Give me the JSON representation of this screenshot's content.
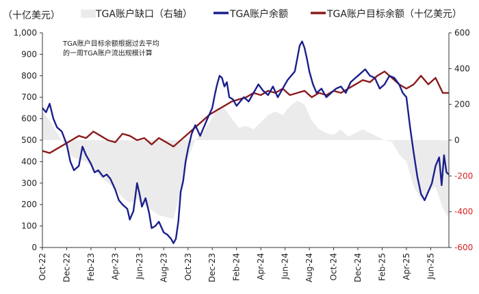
{
  "chart_data": {
    "type": "line",
    "title": "",
    "left_axis_label": "（十亿美元）",
    "annotation": [
      "TGA账户目标余额根据过去平均",
      "的一周TGA账户流出规模计算"
    ],
    "legend": [
      {
        "name": "TGA账户缺口（右轴）",
        "key": "gap"
      },
      {
        "name": "TGA账户余额",
        "key": "balance"
      },
      {
        "name": "TGA账户目标余额（十亿美元）",
        "key": "target"
      }
    ],
    "colors": {
      "gap": "#ebebeb",
      "balance": "#1a1f8c",
      "target": "#8b1a1a",
      "negative_tick": "#d61f1f"
    },
    "x": [
      "Oct-22",
      "Dec-22",
      "Feb-23",
      "Apr-23",
      "Jun-23",
      "Aug-23",
      "Oct-23",
      "Dec-23",
      "Feb-24",
      "Apr-24",
      "Jun-24",
      "Aug-24",
      "Oct-24",
      "Dec-24",
      "Feb-25",
      "Apr-25",
      "Jun-25"
    ],
    "x_ticks": [
      "Oct-22",
      "Dec-22",
      "Feb-23",
      "Apr-23",
      "Jun-23",
      "Aug-23",
      "Oct-23",
      "Dec-23",
      "Feb-24",
      "Apr-24",
      "Jun-24",
      "Aug-24",
      "Oct-24",
      "Dec-24",
      "Feb-25",
      "Apr-25",
      "Jun-25"
    ],
    "x_range_months": [
      0,
      33.5
    ],
    "ylim_left": [
      0,
      1000
    ],
    "ylim_right": [
      -600,
      600
    ],
    "y_ticks_left": [
      "0",
      "100",
      "200",
      "300",
      "400",
      "500",
      "600",
      "700",
      "800",
      "900",
      "1,000"
    ],
    "y_ticks_right": [
      "-600",
      "-400",
      "-200",
      "0",
      "200",
      "400",
      "600"
    ],
    "series": [
      {
        "name": "TGA账户余额",
        "axis": "left",
        "points": [
          [
            0,
            650
          ],
          [
            0.3,
            630
          ],
          [
            0.6,
            670
          ],
          [
            0.9,
            600
          ],
          [
            1.2,
            560
          ],
          [
            1.6,
            540
          ],
          [
            2,
            480
          ],
          [
            2.3,
            400
          ],
          [
            2.6,
            360
          ],
          [
            3,
            380
          ],
          [
            3.3,
            470
          ],
          [
            3.6,
            430
          ],
          [
            4,
            390
          ],
          [
            4.3,
            350
          ],
          [
            4.6,
            360
          ],
          [
            5,
            330
          ],
          [
            5.3,
            340
          ],
          [
            5.6,
            320
          ],
          [
            6,
            270
          ],
          [
            6.3,
            220
          ],
          [
            6.6,
            200
          ],
          [
            7,
            180
          ],
          [
            7.2,
            130
          ],
          [
            7.5,
            170
          ],
          [
            7.8,
            300
          ],
          [
            8,
            250
          ],
          [
            8.2,
            190
          ],
          [
            8.5,
            230
          ],
          [
            8.8,
            160
          ],
          [
            9,
            90
          ],
          [
            9.3,
            100
          ],
          [
            9.6,
            120
          ],
          [
            10,
            70
          ],
          [
            10.3,
            60
          ],
          [
            10.6,
            40
          ],
          [
            10.8,
            20
          ],
          [
            11,
            40
          ],
          [
            11.2,
            120
          ],
          [
            11.4,
            260
          ],
          [
            11.6,
            310
          ],
          [
            11.8,
            400
          ],
          [
            12,
            460
          ],
          [
            12.3,
            530
          ],
          [
            12.6,
            570
          ],
          [
            13,
            520
          ],
          [
            13.3,
            560
          ],
          [
            13.6,
            600
          ],
          [
            14,
            650
          ],
          [
            14.2,
            710
          ],
          [
            14.4,
            760
          ],
          [
            14.6,
            800
          ],
          [
            14.8,
            790
          ],
          [
            15,
            750
          ],
          [
            15.2,
            770
          ],
          [
            15.4,
            700
          ],
          [
            15.7,
            690
          ],
          [
            16,
            660
          ],
          [
            16.3,
            680
          ],
          [
            16.6,
            700
          ],
          [
            17,
            680
          ],
          [
            17.4,
            720
          ],
          [
            17.8,
            760
          ],
          [
            18.2,
            730
          ],
          [
            18.6,
            710
          ],
          [
            19,
            750
          ],
          [
            19.4,
            700
          ],
          [
            19.8,
            740
          ],
          [
            20.2,
            780
          ],
          [
            20.5,
            800
          ],
          [
            20.8,
            820
          ],
          [
            21,
            880
          ],
          [
            21.2,
            940
          ],
          [
            21.4,
            960
          ],
          [
            21.6,
            930
          ],
          [
            21.8,
            880
          ],
          [
            22,
            820
          ],
          [
            22.3,
            760
          ],
          [
            22.6,
            720
          ],
          [
            23,
            740
          ],
          [
            23.4,
            700
          ],
          [
            23.8,
            720
          ],
          [
            24.2,
            740
          ],
          [
            24.6,
            750
          ],
          [
            25,
            720
          ],
          [
            25.4,
            770
          ],
          [
            25.8,
            790
          ],
          [
            26.2,
            810
          ],
          [
            26.6,
            830
          ],
          [
            27,
            800
          ],
          [
            27.4,
            790
          ],
          [
            27.8,
            740
          ],
          [
            28.2,
            760
          ],
          [
            28.6,
            800
          ],
          [
            29,
            790
          ],
          [
            29.4,
            760
          ],
          [
            29.7,
            720
          ],
          [
            30,
            700
          ],
          [
            30.3,
            560
          ],
          [
            30.6,
            440
          ],
          [
            30.9,
            330
          ],
          [
            31.2,
            250
          ],
          [
            31.5,
            220
          ],
          [
            31.8,
            260
          ],
          [
            32.1,
            300
          ],
          [
            32.4,
            380
          ],
          [
            32.7,
            420
          ],
          [
            32.9,
            290
          ],
          [
            33.1,
            430
          ],
          [
            33.3,
            350
          ],
          [
            33.5,
            340
          ]
        ]
      },
      {
        "name": "TGA账户目标余额（十亿美元）",
        "axis": "left",
        "points": [
          [
            0,
            450
          ],
          [
            0.6,
            440
          ],
          [
            1.2,
            460
          ],
          [
            1.8,
            480
          ],
          [
            2.4,
            500
          ],
          [
            3,
            520
          ],
          [
            3.6,
            510
          ],
          [
            4.2,
            540
          ],
          [
            4.8,
            520
          ],
          [
            5.4,
            500
          ],
          [
            6,
            490
          ],
          [
            6.6,
            530
          ],
          [
            7.2,
            520
          ],
          [
            7.8,
            500
          ],
          [
            8.4,
            510
          ],
          [
            9,
            480
          ],
          [
            9.6,
            510
          ],
          [
            10.2,
            490
          ],
          [
            10.8,
            470
          ],
          [
            11.4,
            500
          ],
          [
            12,
            530
          ],
          [
            12.6,
            560
          ],
          [
            13.2,
            590
          ],
          [
            13.8,
            620
          ],
          [
            14.4,
            640
          ],
          [
            15,
            660
          ],
          [
            15.6,
            680
          ],
          [
            16.2,
            690
          ],
          [
            16.8,
            700
          ],
          [
            17.4,
            720
          ],
          [
            18,
            710
          ],
          [
            18.6,
            730
          ],
          [
            19.2,
            720
          ],
          [
            19.8,
            740
          ],
          [
            20.4,
            710
          ],
          [
            21,
            720
          ],
          [
            21.6,
            730
          ],
          [
            22.2,
            700
          ],
          [
            22.8,
            720
          ],
          [
            23.4,
            710
          ],
          [
            24,
            730
          ],
          [
            24.6,
            720
          ],
          [
            25.2,
            740
          ],
          [
            25.8,
            760
          ],
          [
            26.4,
            780
          ],
          [
            27,
            770
          ],
          [
            27.6,
            800
          ],
          [
            28.2,
            820
          ],
          [
            28.8,
            790
          ],
          [
            29.4,
            760
          ],
          [
            30,
            740
          ],
          [
            30.6,
            760
          ],
          [
            31.2,
            800
          ],
          [
            31.8,
            760
          ],
          [
            32.4,
            790
          ],
          [
            33,
            720
          ],
          [
            33.5,
            720
          ]
        ]
      },
      {
        "name": "TGA账户缺口（右轴）",
        "axis": "right",
        "points": [
          [
            0,
            160
          ],
          [
            0.6,
            110
          ],
          [
            1.2,
            40
          ],
          [
            1.8,
            -20
          ],
          [
            2.4,
            -90
          ],
          [
            3,
            -110
          ],
          [
            3.6,
            -120
          ],
          [
            4.2,
            -160
          ],
          [
            4.8,
            -210
          ],
          [
            5.4,
            -240
          ],
          [
            6,
            -270
          ],
          [
            6.6,
            -320
          ],
          [
            7.2,
            -350
          ],
          [
            7.8,
            -330
          ],
          [
            8.4,
            -360
          ],
          [
            9,
            -390
          ],
          [
            9.6,
            -420
          ],
          [
            10.2,
            -430
          ],
          [
            10.8,
            -440
          ],
          [
            11.4,
            -290
          ],
          [
            12,
            -100
          ],
          [
            12.6,
            0
          ],
          [
            13.2,
            40
          ],
          [
            13.8,
            100
          ],
          [
            14.4,
            180
          ],
          [
            15,
            180
          ],
          [
            15.6,
            120
          ],
          [
            16.2,
            70
          ],
          [
            16.8,
            80
          ],
          [
            17.4,
            60
          ],
          [
            18,
            100
          ],
          [
            18.6,
            140
          ],
          [
            19.2,
            160
          ],
          [
            19.8,
            140
          ],
          [
            20.4,
            190
          ],
          [
            21,
            220
          ],
          [
            21.6,
            200
          ],
          [
            22.2,
            110
          ],
          [
            22.8,
            60
          ],
          [
            23.4,
            40
          ],
          [
            24,
            30
          ],
          [
            24.6,
            60
          ],
          [
            25.2,
            20
          ],
          [
            25.8,
            40
          ],
          [
            26.4,
            60
          ],
          [
            27,
            40
          ],
          [
            27.6,
            20
          ],
          [
            28.2,
            0
          ],
          [
            28.8,
            -10
          ],
          [
            29.4,
            -80
          ],
          [
            30,
            -120
          ],
          [
            30.6,
            -260
          ],
          [
            31.2,
            -330
          ],
          [
            31.8,
            -290
          ],
          [
            32.4,
            -260
          ],
          [
            33,
            -380
          ],
          [
            33.5,
            -440
          ]
        ]
      }
    ]
  }
}
